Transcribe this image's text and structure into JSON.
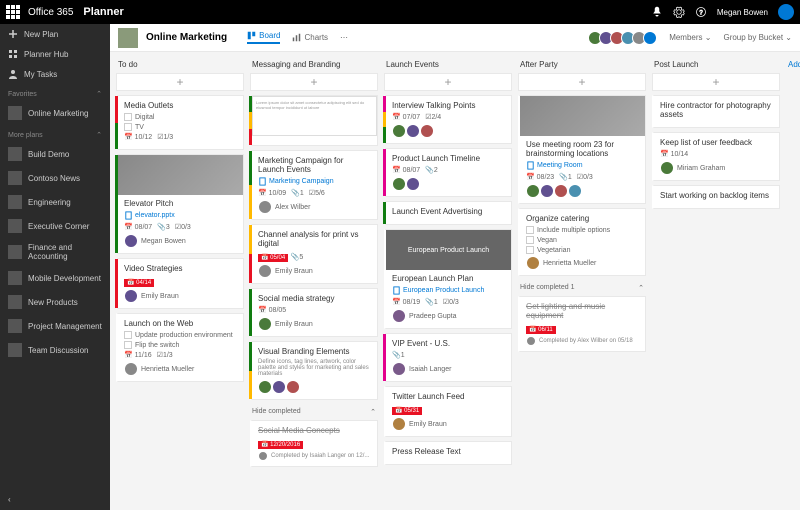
{
  "topbar": {
    "brand": "Office 365",
    "product": "Planner",
    "user": "Megan Bowen"
  },
  "sidebar": {
    "top": [
      {
        "icon": "plus",
        "label": "New Plan"
      },
      {
        "icon": "grid",
        "label": "Planner Hub"
      },
      {
        "icon": "person",
        "label": "My Tasks"
      }
    ],
    "favorites_label": "Favorites",
    "favorites": [
      {
        "label": "Online Marketing"
      }
    ],
    "more_label": "More plans",
    "more": [
      {
        "label": "Build Demo"
      },
      {
        "label": "Contoso News"
      },
      {
        "label": "Engineering"
      },
      {
        "label": "Executive Corner"
      },
      {
        "label": "Finance and Accounting"
      },
      {
        "label": "Mobile Development"
      },
      {
        "label": "New Products"
      },
      {
        "label": "Project Management"
      },
      {
        "label": "Team Discussion"
      }
    ]
  },
  "plan": {
    "title": "Online Marketing",
    "tabs": {
      "board": "Board",
      "charts": "Charts"
    },
    "members_label": "Members",
    "group_label": "Group by Bucket",
    "member_colors": [
      "#4a7a3a",
      "#605090",
      "#b05050",
      "#4a90b0",
      "#888",
      "#0078d4"
    ]
  },
  "buckets": [
    {
      "name": "To do",
      "cards": [
        {
          "title": "Media Outlets",
          "checklist": [
            "Digital",
            "TV"
          ],
          "meta": {
            "date": "10/12",
            "checks": "1/3"
          },
          "stripes": [
            "#e81123",
            "#107c10"
          ]
        },
        {
          "title": "Elevator Pitch",
          "image": true,
          "sub": "elevator.pptx",
          "meta": {
            "date": "08/07",
            "attach": "3",
            "checks": "0/3"
          },
          "assignee": "Megan Bowen",
          "stripes": [
            "#107c10"
          ]
        },
        {
          "title": "Video Strategies",
          "badge": "04/14",
          "assignee": "Emily Braun",
          "stripes": [
            "#e81123"
          ]
        },
        {
          "title": "Launch on the Web",
          "checklist": [
            "Update production environment",
            "Flip the switch"
          ],
          "meta": {
            "date": "11/16",
            "checks": "1/3"
          },
          "assignee": "Henrietta Mueller"
        }
      ]
    },
    {
      "name": "Messaging and Branding",
      "cards": [
        {
          "title": "",
          "image": true,
          "doc": true,
          "stripes": [
            "#107c10",
            "#ffb900",
            "#e81123"
          ]
        },
        {
          "title": "Marketing Campaign for Launch Events",
          "sub": "Marketing Campaign",
          "meta": {
            "date": "10/09",
            "attach": "1",
            "checks": "5/6"
          },
          "assignee": "Alex Wilber",
          "stripes": [
            "#107c10",
            "#ffb900"
          ]
        },
        {
          "title": "Channel analysis for print vs digital",
          "badge": "05/04",
          "meta_inline": "5",
          "assignee": "Emily Braun",
          "stripes": [
            "#ffb900",
            "#e81123"
          ]
        },
        {
          "title": "Social media strategy",
          "meta": {
            "date": "08/05"
          },
          "assignee": "Emily Braun",
          "stripes": [
            "#107c10"
          ]
        },
        {
          "title": "Visual Branding Elements",
          "desc": "Define icons, tag lines, artwork, color palette and styles for marketing and sales materials",
          "avatars": 3,
          "stripes": [
            "#107c10",
            "#ffb900"
          ]
        }
      ],
      "hide_completed": "Hide completed",
      "completed": [
        {
          "title": "Social Media Concepts",
          "badge": "12/20/2016",
          "by": "Completed by Isaiah Langer on 12/..."
        }
      ]
    },
    {
      "name": "Launch Events",
      "cards": [
        {
          "title": "Interview Talking Points",
          "meta": {
            "date": "07/07",
            "checks": "2/4"
          },
          "avatars": 3,
          "stripes": [
            "#e3008c",
            "#ffb900",
            "#107c10"
          ]
        },
        {
          "title": "Product Launch Timeline",
          "meta": {
            "date": "08/07",
            "attach": "2"
          },
          "avatars": 2,
          "stripes": [
            "#e3008c"
          ]
        },
        {
          "title": "Launch Event Advertising",
          "stripes": [
            "#107c10"
          ]
        },
        {
          "title": "European Launch Plan",
          "image": true,
          "img_label": "European Product Launch",
          "sub": "European Product Launch",
          "meta": {
            "date": "08/19",
            "attach": "1",
            "checks": "0/3"
          },
          "assignee": "Pradeep Gupta"
        },
        {
          "title": "VIP Event - U.S.",
          "meta": {
            "attach": "1"
          },
          "assignee": "Isaiah Langer",
          "stripes": [
            "#e3008c"
          ]
        },
        {
          "title": "Twitter Launch Feed",
          "badge": "05/31",
          "assignee": "Emily Braun"
        },
        {
          "title": "Press Release Text"
        }
      ]
    },
    {
      "name": "After Party",
      "cards": [
        {
          "title": "Use meeting room 23 for brainstorming locations",
          "image": true,
          "sub": "Meeting Room",
          "meta": {
            "date": "08/23",
            "attach": "1",
            "checks": "0/3"
          },
          "avatars": 4
        },
        {
          "title": "Organize catering",
          "checklist": [
            "Include multiple options",
            "Vegan",
            "Vegetarian"
          ],
          "assignee": "Henrietta Mueller"
        }
      ],
      "hide_completed": "Hide completed   1",
      "completed": [
        {
          "title": "Get lighting and music equipment",
          "badge": "06/11",
          "by": "Completed by Alex Wilber on 05/18"
        }
      ]
    },
    {
      "name": "Post Launch",
      "cards": [
        {
          "title": "Hire contractor for photography assets"
        },
        {
          "title": "Keep list of user feedback",
          "meta": {
            "date": "10/14"
          },
          "assignee": "Miriam Graham"
        },
        {
          "title": "Start working on backlog items"
        }
      ]
    }
  ],
  "add_bucket": "Add new bu"
}
